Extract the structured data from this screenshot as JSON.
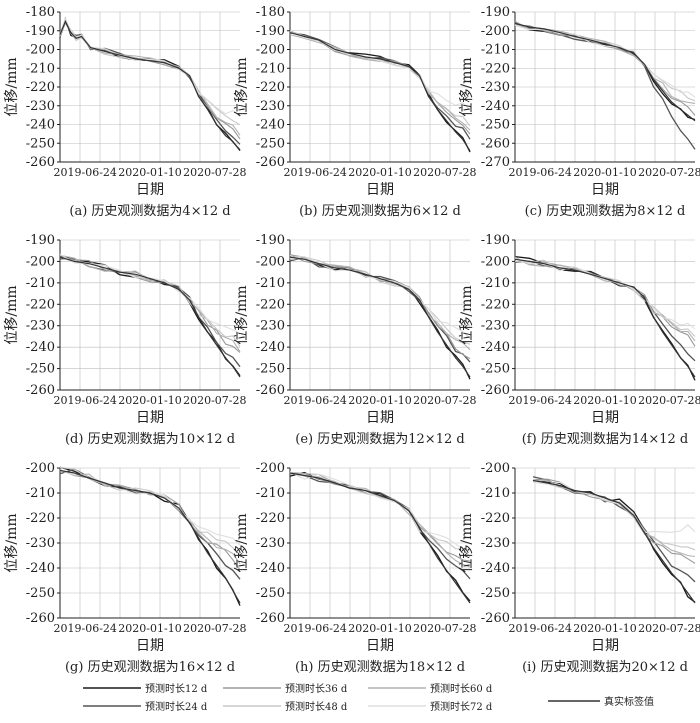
{
  "figure": {
    "legend": [
      {
        "label": "预测时长12 d",
        "color": "#1a1a1a"
      },
      {
        "label": "预测时长24 d",
        "color": "#555555"
      },
      {
        "label": "预测时长36 d",
        "color": "#9a9a9a"
      },
      {
        "label": "预测时长48 d",
        "color": "#c8c8c8"
      },
      {
        "label": "预测时长60 d",
        "color": "#b2b2b2"
      },
      {
        "label": "预测时长72 d",
        "color": "#dedede"
      },
      {
        "label": "真实标签值",
        "color": "#333333"
      }
    ]
  },
  "chart_data": [
    {
      "type": "line",
      "caption": "(a) 历史观测数据为4×12 d",
      "xlabel": "日期",
      "ylabel": "位移/mm",
      "xticks": [
        "2019-06-24",
        "2020-01-10",
        "2020-07-28"
      ],
      "yticks": [
        -180,
        -190,
        -200,
        -210,
        -220,
        -230,
        -240,
        -250,
        -260
      ],
      "ylim": [
        -260,
        -180
      ],
      "grid": true,
      "truth": {
        "x": [
          0,
          0.03,
          0.06,
          0.09,
          0.12,
          0.17,
          0.25,
          0.33,
          0.42,
          0.5,
          0.58,
          0.66,
          0.72,
          0.77,
          0.82,
          0.87,
          0.92,
          0.96,
          1.0
        ],
        "y": [
          -192,
          -185,
          -191,
          -194,
          -193,
          -199,
          -201,
          -203,
          -205,
          -206,
          -207,
          -210,
          -214,
          -225,
          -232,
          -240,
          -246,
          -249,
          -254
        ]
      },
      "endpoints": {
        "12d": -254,
        "24d": -250,
        "36d": -247,
        "48d": -241,
        "60d": -245,
        "72d": -236
      }
    },
    {
      "type": "line",
      "caption": "(b) 历史观测数据为6×12 d",
      "xlabel": "日期",
      "ylabel": "位移/mm",
      "xticks": [
        "2019-06-24",
        "2020-01-10",
        "2020-07-28"
      ],
      "yticks": [
        -180,
        -190,
        -200,
        -210,
        -220,
        -230,
        -240,
        -250,
        -260
      ],
      "ylim": [
        -260,
        -180
      ],
      "grid": true,
      "truth": {
        "x": [
          0,
          0.08,
          0.16,
          0.25,
          0.33,
          0.42,
          0.5,
          0.58,
          0.66,
          0.72,
          0.77,
          0.82,
          0.87,
          0.92,
          0.96,
          1.0
        ],
        "y": [
          -191,
          -193,
          -195,
          -200,
          -202,
          -204,
          -205,
          -207,
          -209,
          -214,
          -225,
          -232,
          -238,
          -244,
          -248,
          -254
        ]
      },
      "endpoints": {
        "12d": -254,
        "24d": -248,
        "36d": -244,
        "48d": -240,
        "60d": -242,
        "72d": -232
      }
    },
    {
      "type": "line",
      "caption": "(c) 历史观测数据为8×12 d",
      "xlabel": "日期",
      "ylabel": "位移/mm",
      "xticks": [
        "2019-06-24",
        "2020-01-10",
        "2020-07-28"
      ],
      "yticks": [
        -190,
        -200,
        -210,
        -220,
        -230,
        -240,
        -250,
        -260,
        -270
      ],
      "ylim": [
        -270,
        -190
      ],
      "grid": true,
      "truth": {
        "x": [
          0,
          0.08,
          0.16,
          0.25,
          0.33,
          0.42,
          0.5,
          0.58,
          0.66,
          0.72,
          0.77,
          0.82,
          0.87,
          0.92,
          0.96,
          1.0
        ],
        "y": [
          -196,
          -198,
          -199,
          -201,
          -203,
          -205,
          -207,
          -209,
          -212,
          -218,
          -226,
          -232,
          -238,
          -242,
          -245,
          -248
        ]
      },
      "endpoints": {
        "12d": -248,
        "24d": -262,
        "36d": -244,
        "48d": -236,
        "60d": -240,
        "72d": -234
      }
    },
    {
      "type": "line",
      "caption": "(d) 历史观测数据为10×12 d",
      "xlabel": "日期",
      "ylabel": "位移/mm",
      "xticks": [
        "2019-06-24",
        "2020-01-10",
        "2020-07-28"
      ],
      "yticks": [
        -190,
        -200,
        -210,
        -220,
        -230,
        -240,
        -250,
        -260
      ],
      "ylim": [
        -260,
        -190
      ],
      "grid": true,
      "truth": {
        "x": [
          0,
          0.08,
          0.16,
          0.25,
          0.33,
          0.42,
          0.5,
          0.58,
          0.66,
          0.72,
          0.77,
          0.82,
          0.87,
          0.92,
          0.96,
          1.0
        ],
        "y": [
          -198,
          -200,
          -201,
          -203,
          -205,
          -206,
          -208,
          -210,
          -213,
          -218,
          -226,
          -233,
          -239,
          -245,
          -249,
          -254
        ]
      },
      "endpoints": {
        "12d": -254,
        "24d": -249,
        "36d": -244,
        "48d": -239,
        "60d": -241,
        "72d": -235
      }
    },
    {
      "type": "line",
      "caption": "(e) 历史观测数据为12×12 d",
      "xlabel": "日期",
      "ylabel": "位移/mm",
      "xticks": [
        "2019-06-24",
        "2020-01-10",
        "2020-07-28"
      ],
      "yticks": [
        -190,
        -200,
        -210,
        -220,
        -230,
        -240,
        -250,
        -260
      ],
      "ylim": [
        -260,
        -190
      ],
      "grid": true,
      "truth": {
        "x": [
          0,
          0.08,
          0.16,
          0.25,
          0.33,
          0.42,
          0.5,
          0.58,
          0.66,
          0.72,
          0.77,
          0.82,
          0.87,
          0.92,
          0.96,
          1.0
        ],
        "y": [
          -198,
          -199,
          -201,
          -203,
          -204,
          -206,
          -208,
          -210,
          -213,
          -218,
          -226,
          -233,
          -239,
          -245,
          -249,
          -254
        ]
      },
      "endpoints": {
        "12d": -254,
        "24d": -248,
        "36d": -246,
        "48d": -240,
        "60d": -242,
        "72d": -236
      }
    },
    {
      "type": "line",
      "caption": "(f) 历史观测数据为14×12 d",
      "xlabel": "日期",
      "ylabel": "位移/mm",
      "xticks": [
        "2019-06-24",
        "2020-01-10",
        "2020-07-28"
      ],
      "yticks": [
        -190,
        -200,
        -210,
        -220,
        -230,
        -240,
        -250,
        -260
      ],
      "ylim": [
        -260,
        -190
      ],
      "grid": true,
      "truth": {
        "x": [
          0,
          0.08,
          0.16,
          0.25,
          0.33,
          0.42,
          0.5,
          0.58,
          0.66,
          0.72,
          0.77,
          0.82,
          0.87,
          0.92,
          0.96,
          1.0
        ],
        "y": [
          -199,
          -200,
          -201,
          -203,
          -204,
          -206,
          -208,
          -210,
          -212,
          -217,
          -226,
          -233,
          -239,
          -245,
          -249,
          -254
        ]
      },
      "endpoints": {
        "12d": -254,
        "24d": -246,
        "36d": -238,
        "48d": -234,
        "60d": -236,
        "72d": -232
      }
    },
    {
      "type": "line",
      "caption": "(g) 历史观测数据为16×12 d",
      "xlabel": "日期",
      "ylabel": "位移/mm",
      "xticks": [
        "2019-06-24",
        "2020-01-10",
        "2020-07-28"
      ],
      "yticks": [
        -200,
        -210,
        -220,
        -230,
        -240,
        -250,
        -260
      ],
      "ylim": [
        -260,
        -200
      ],
      "grid": true,
      "truth": {
        "x": [
          0,
          0.08,
          0.16,
          0.25,
          0.33,
          0.42,
          0.5,
          0.58,
          0.66,
          0.72,
          0.77,
          0.82,
          0.87,
          0.92,
          0.96,
          1.0
        ],
        "y": [
          -201,
          -202,
          -204,
          -206,
          -208,
          -209,
          -210,
          -212,
          -216,
          -222,
          -228,
          -234,
          -239,
          -244,
          -249,
          -254
        ]
      },
      "endpoints": {
        "12d": -254,
        "24d": -246,
        "36d": -240,
        "48d": -234,
        "60d": -238,
        "72d": -230
      }
    },
    {
      "type": "line",
      "caption": "(h) 历史观测数据为18×12 d",
      "xlabel": "日期",
      "ylabel": "位移/mm",
      "xticks": [
        "2019-06-24",
        "2020-01-10",
        "2020-07-28"
      ],
      "yticks": [
        -200,
        -210,
        -220,
        -230,
        -240,
        -250,
        -260
      ],
      "ylim": [
        -260,
        -200
      ],
      "grid": true,
      "truth": {
        "x": [
          0,
          0.08,
          0.16,
          0.25,
          0.33,
          0.42,
          0.5,
          0.58,
          0.66,
          0.72,
          0.77,
          0.82,
          0.87,
          0.92,
          0.96,
          1.0
        ],
        "y": [
          -202,
          -203,
          -204,
          -206,
          -208,
          -209,
          -211,
          -213,
          -217,
          -224,
          -230,
          -236,
          -241,
          -246,
          -250,
          -254
        ]
      },
      "endpoints": {
        "12d": -254,
        "24d": -244,
        "36d": -238,
        "48d": -234,
        "60d": -240,
        "72d": -232
      }
    },
    {
      "type": "line",
      "caption": "(i) 历史观测数据为20×12 d",
      "xlabel": "日期",
      "ylabel": "位移/mm",
      "xticks": [
        "2019-06-24",
        "2020-01-10",
        "2020-07-28"
      ],
      "yticks": [
        -200,
        -210,
        -220,
        -230,
        -240,
        -250,
        -260
      ],
      "ylim": [
        -260,
        -200
      ],
      "grid": true,
      "truth": {
        "x": [
          0.1,
          0.18,
          0.25,
          0.33,
          0.42,
          0.5,
          0.58,
          0.66,
          0.72,
          0.77,
          0.82,
          0.87,
          0.92,
          0.96,
          1.0
        ],
        "y": [
          -205,
          -206,
          -207,
          -209,
          -210,
          -212,
          -214,
          -219,
          -226,
          -232,
          -237,
          -242,
          -246,
          -250,
          -254
        ]
      },
      "endpoints": {
        "12d": -254,
        "24d": -246,
        "36d": -238,
        "48d": -232,
        "60d": -236,
        "72d": -224
      }
    }
  ]
}
